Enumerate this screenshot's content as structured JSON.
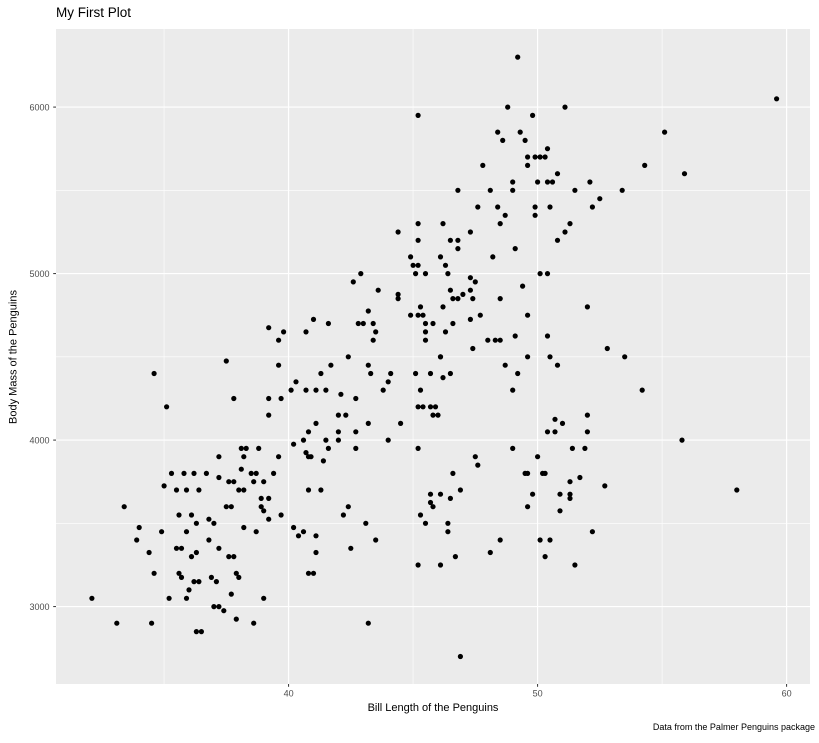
{
  "colors": {
    "panel_bg": "#EBEBEB",
    "grid_major": "#FFFFFF",
    "grid_minor": "#FFFFFF",
    "point": "#000000",
    "tick_text": "#4D4D4D",
    "tick_mark": "#333333"
  },
  "chart_data": {
    "type": "scatter",
    "title": "My First Plot",
    "xlabel": "Bill Length of the Penguins",
    "ylabel": "Body Mass of the Penguins",
    "caption": "Data from the Palmer Penguins package",
    "x_ticks": [
      40,
      50,
      60
    ],
    "x_minor": [
      35,
      45,
      55
    ],
    "y_ticks": [
      3000,
      4000,
      5000,
      6000
    ],
    "y_minor": [
      3500,
      4500,
      5500
    ],
    "xlim": [
      30.66,
      60.94
    ],
    "ylim": [
      2535,
      6469
    ],
    "grid": true,
    "legend": "none",
    "points": [
      [
        49.2,
        6300
      ],
      [
        48.8,
        6000
      ],
      [
        49.8,
        5950
      ],
      [
        45.2,
        5950
      ],
      [
        48.4,
        5850
      ],
      [
        49.3,
        5850
      ],
      [
        48.6,
        5800
      ],
      [
        49.5,
        5800
      ],
      [
        50.4,
        5750
      ],
      [
        49.6,
        5700
      ],
      [
        49.9,
        5700
      ],
      [
        50.1,
        5700
      ],
      [
        50.3,
        5700
      ],
      [
        47.8,
        5650
      ],
      [
        49.6,
        5650
      ],
      [
        50.8,
        5600
      ],
      [
        49.0,
        5550
      ],
      [
        50.0,
        5550
      ],
      [
        50.4,
        5550
      ],
      [
        50.6,
        5550
      ],
      [
        46.8,
        5500
      ],
      [
        48.1,
        5500
      ],
      [
        49.0,
        5500
      ],
      [
        59.6,
        6050
      ],
      [
        51.1,
        6000
      ],
      [
        55.1,
        5850
      ],
      [
        54.3,
        5650
      ],
      [
        55.9,
        5600
      ],
      [
        52.1,
        5550
      ],
      [
        51.5,
        5500
      ],
      [
        53.4,
        5500
      ],
      [
        52.5,
        5450
      ],
      [
        52.2,
        5400
      ],
      [
        51.3,
        5300
      ],
      [
        51.1,
        5250
      ],
      [
        52.0,
        4800
      ],
      [
        52.8,
        4550
      ],
      [
        53.5,
        4500
      ],
      [
        47.6,
        5400
      ],
      [
        48.4,
        5400
      ],
      [
        49.9,
        5400
      ],
      [
        50.5,
        5400
      ],
      [
        48.7,
        5350
      ],
      [
        49.9,
        5350
      ],
      [
        45.2,
        5300
      ],
      [
        46.2,
        5300
      ],
      [
        48.5,
        5300
      ],
      [
        44.4,
        5250
      ],
      [
        47.3,
        5250
      ],
      [
        45.2,
        5200
      ],
      [
        46.5,
        5200
      ],
      [
        46.8,
        5200
      ],
      [
        46.8,
        5150
      ],
      [
        50.8,
        5200
      ],
      [
        49.1,
        5150
      ],
      [
        48.2,
        5100
      ],
      [
        46.1,
        5100
      ],
      [
        44.9,
        5100
      ],
      [
        45.0,
        5050
      ],
      [
        45.2,
        5050
      ],
      [
        46.3,
        5050
      ],
      [
        45.1,
        5000
      ],
      [
        45.5,
        5000
      ],
      [
        46.4,
        5000
      ],
      [
        42.9,
        5000
      ],
      [
        50.1,
        5000
      ],
      [
        50.4,
        5000
      ],
      [
        42.6,
        4950
      ],
      [
        47.3,
        4975
      ],
      [
        47.5,
        4950
      ],
      [
        43.6,
        4900
      ],
      [
        46.5,
        4900
      ],
      [
        47.3,
        4900
      ],
      [
        44.4,
        4875
      ],
      [
        44.4,
        4850
      ],
      [
        46.6,
        4850
      ],
      [
        46.8,
        4850
      ],
      [
        47.0,
        4875
      ],
      [
        47.4,
        4850
      ],
      [
        48.5,
        4850
      ],
      [
        49.4,
        4925
      ],
      [
        43.2,
        4775
      ],
      [
        45.3,
        4800
      ],
      [
        44.9,
        4750
      ],
      [
        45.2,
        4750
      ],
      [
        45.4,
        4750
      ],
      [
        46.2,
        4800
      ],
      [
        47.7,
        4750
      ],
      [
        49.6,
        4750
      ],
      [
        45.5,
        4700
      ],
      [
        45.8,
        4700
      ],
      [
        47.3,
        4725
      ],
      [
        46.6,
        4700
      ],
      [
        42.8,
        4700
      ],
      [
        43.0,
        4700
      ],
      [
        41.0,
        4725
      ],
      [
        41.6,
        4700
      ],
      [
        40.7,
        4650
      ],
      [
        43.4,
        4700
      ],
      [
        43.5,
        4650
      ],
      [
        46.3,
        4650
      ],
      [
        45.5,
        4650
      ],
      [
        45.5,
        4600
      ],
      [
        48.0,
        4600
      ],
      [
        48.3,
        4600
      ],
      [
        48.5,
        4600
      ],
      [
        49.1,
        4625
      ],
      [
        43.4,
        4600
      ],
      [
        47.4,
        4550
      ],
      [
        50.4,
        4625
      ],
      [
        49.6,
        4500
      ],
      [
        42.4,
        4500
      ],
      [
        46.1,
        4500
      ],
      [
        39.2,
        4675
      ],
      [
        39.8,
        4650
      ],
      [
        39.6,
        4600
      ],
      [
        37.5,
        4475
      ],
      [
        39.6,
        4450
      ],
      [
        34.6,
        4400
      ],
      [
        40.3,
        4350
      ],
      [
        40.1,
        4300
      ],
      [
        40.7,
        4300
      ],
      [
        37.8,
        4250
      ],
      [
        39.2,
        4250
      ],
      [
        39.7,
        4250
      ],
      [
        35.1,
        4200
      ],
      [
        39.2,
        4150
      ],
      [
        40.2,
        3975
      ],
      [
        40.6,
        4000
      ],
      [
        40.7,
        3925
      ],
      [
        38.1,
        3950
      ],
      [
        38.3,
        3950
      ],
      [
        38.8,
        3950
      ],
      [
        37.2,
        3900
      ],
      [
        38.2,
        3900
      ],
      [
        39.6,
        3900
      ],
      [
        35.3,
        3800
      ],
      [
        35.8,
        3800
      ],
      [
        36.2,
        3800
      ],
      [
        36.7,
        3800
      ],
      [
        37.2,
        3775
      ],
      [
        38.1,
        3825
      ],
      [
        38.5,
        3800
      ],
      [
        38.7,
        3800
      ],
      [
        37.6,
        3750
      ],
      [
        37.8,
        3750
      ],
      [
        38.0,
        3700
      ],
      [
        38.2,
        3700
      ],
      [
        39.0,
        3750
      ],
      [
        39.4,
        3800
      ],
      [
        35.0,
        3725
      ],
      [
        35.5,
        3700
      ],
      [
        35.9,
        3700
      ],
      [
        36.4,
        3700
      ],
      [
        38.6,
        3750
      ],
      [
        38.9,
        3650
      ],
      [
        39.2,
        3650
      ],
      [
        38.9,
        3600
      ],
      [
        39.0,
        3575
      ],
      [
        33.4,
        3600
      ],
      [
        39.2,
        3525
      ],
      [
        37.5,
        3600
      ],
      [
        37.7,
        3600
      ],
      [
        35.6,
        3550
      ],
      [
        36.1,
        3550
      ],
      [
        36.8,
        3525
      ],
      [
        39.7,
        3550
      ],
      [
        41.7,
        4450
      ],
      [
        46.1,
        4500
      ],
      [
        41.3,
        4400
      ],
      [
        43.2,
        4450
      ],
      [
        43.3,
        4400
      ],
      [
        44.1,
        4400
      ],
      [
        45.1,
        4400
      ],
      [
        45.7,
        4400
      ],
      [
        46.5,
        4400
      ],
      [
        46.2,
        4375
      ],
      [
        48.7,
        4450
      ],
      [
        49.2,
        4400
      ],
      [
        50.5,
        4500
      ],
      [
        44.0,
        4350
      ],
      [
        45.3,
        4300
      ],
      [
        49.0,
        4300
      ],
      [
        43.8,
        4300
      ],
      [
        42.1,
        4275
      ],
      [
        42.7,
        4250
      ],
      [
        41.1,
        4300
      ],
      [
        41.5,
        4300
      ],
      [
        45.2,
        4200
      ],
      [
        45.4,
        4200
      ],
      [
        45.7,
        4200
      ],
      [
        45.9,
        4200
      ],
      [
        42.0,
        4150
      ],
      [
        42.3,
        4150
      ],
      [
        45.8,
        4150
      ],
      [
        46.0,
        4150
      ],
      [
        43.2,
        4100
      ],
      [
        44.5,
        4100
      ],
      [
        41.1,
        4100
      ],
      [
        40.8,
        4050
      ],
      [
        42.7,
        4050
      ],
      [
        42.0,
        4050
      ],
      [
        44.0,
        4000
      ],
      [
        41.5,
        4000
      ],
      [
        42.0,
        4000
      ],
      [
        41.6,
        3950
      ],
      [
        45.2,
        3950
      ],
      [
        49.0,
        3950
      ],
      [
        42.7,
        3950
      ],
      [
        40.8,
        3900
      ],
      [
        40.9,
        3900
      ],
      [
        41.4,
        3875
      ],
      [
        47.5,
        3900
      ],
      [
        47.6,
        3850
      ],
      [
        50.0,
        3900
      ],
      [
        46.6,
        3800
      ],
      [
        49.5,
        3800
      ],
      [
        49.6,
        3800
      ],
      [
        50.2,
        3800
      ],
      [
        50.3,
        3800
      ],
      [
        50.8,
        4450
      ],
      [
        50.7,
        4125
      ],
      [
        50.4,
        4050
      ],
      [
        50.7,
        4050
      ],
      [
        49.8,
        3675
      ],
      [
        49.6,
        3600
      ],
      [
        45.7,
        3675
      ],
      [
        46.1,
        3675
      ],
      [
        46.5,
        3650
      ],
      [
        46.9,
        3700
      ],
      [
        45.7,
        3625
      ],
      [
        45.8,
        3600
      ],
      [
        45.3,
        3550
      ],
      [
        40.8,
        3700
      ],
      [
        41.3,
        3700
      ],
      [
        42.4,
        3600
      ],
      [
        42.2,
        3550
      ],
      [
        54.2,
        4300
      ],
      [
        52.0,
        4150
      ],
      [
        51.0,
        4100
      ],
      [
        52.0,
        4050
      ],
      [
        55.8,
        4000
      ],
      [
        51.4,
        3950
      ],
      [
        51.9,
        3950
      ],
      [
        51.7,
        3775
      ],
      [
        51.3,
        3750
      ],
      [
        52.7,
        3725
      ],
      [
        50.9,
        3675
      ],
      [
        51.3,
        3675
      ],
      [
        51.3,
        3650
      ],
      [
        58.0,
        3700
      ],
      [
        50.9,
        3575
      ],
      [
        34.0,
        3475
      ],
      [
        34.9,
        3450
      ],
      [
        33.9,
        3400
      ],
      [
        35.9,
        3450
      ],
      [
        36.3,
        3500
      ],
      [
        34.4,
        3325
      ],
      [
        37.0,
        3500
      ],
      [
        38.2,
        3475
      ],
      [
        38.7,
        3450
      ],
      [
        40.2,
        3475
      ],
      [
        40.6,
        3450
      ],
      [
        40.4,
        3425
      ],
      [
        35.5,
        3350
      ],
      [
        35.7,
        3350
      ],
      [
        36.1,
        3300
      ],
      [
        36.3,
        3325
      ],
      [
        36.8,
        3400
      ],
      [
        37.2,
        3350
      ],
      [
        37.6,
        3300
      ],
      [
        37.8,
        3300
      ],
      [
        36.9,
        3175
      ],
      [
        37.1,
        3150
      ],
      [
        35.6,
        3200
      ],
      [
        35.7,
        3175
      ],
      [
        36.0,
        3100
      ],
      [
        36.2,
        3150
      ],
      [
        36.4,
        3150
      ],
      [
        34.6,
        3200
      ],
      [
        37.9,
        3200
      ],
      [
        38.0,
        3175
      ],
      [
        37.7,
        3075
      ],
      [
        35.2,
        3050
      ],
      [
        35.9,
        3050
      ],
      [
        32.1,
        3050
      ],
      [
        39.0,
        3050
      ],
      [
        37.0,
        3000
      ],
      [
        37.2,
        3000
      ],
      [
        37.4,
        2975
      ],
      [
        37.9,
        2925
      ],
      [
        38.6,
        2900
      ],
      [
        33.1,
        2900
      ],
      [
        34.5,
        2900
      ],
      [
        36.3,
        2850
      ],
      [
        36.5,
        2850
      ],
      [
        43.1,
        3500
      ],
      [
        41.1,
        3425
      ],
      [
        40.8,
        3200
      ],
      [
        41.0,
        3200
      ],
      [
        41.1,
        3325
      ],
      [
        42.5,
        3350
      ],
      [
        43.5,
        3400
      ],
      [
        45.5,
        3500
      ],
      [
        46.4,
        3500
      ],
      [
        46.4,
        3450
      ],
      [
        45.2,
        3250
      ],
      [
        46.1,
        3250
      ],
      [
        46.7,
        3300
      ],
      [
        48.1,
        3325
      ],
      [
        48.5,
        3400
      ],
      [
        50.1,
        3400
      ],
      [
        50.5,
        3400
      ],
      [
        50.3,
        3300
      ],
      [
        43.2,
        2900
      ],
      [
        46.9,
        2700
      ],
      [
        52.2,
        3450
      ],
      [
        51.5,
        3250
      ]
    ]
  }
}
